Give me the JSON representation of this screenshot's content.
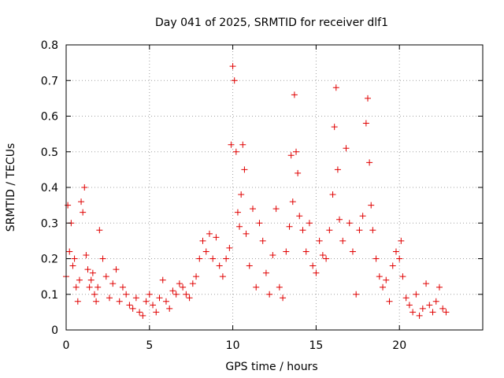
{
  "chart_data": {
    "type": "scatter",
    "title": "Day 041 of 2025, SRMTID for receiver dlf1",
    "xlabel": "GPS time / hours",
    "ylabel": "SRMTID / TECUs",
    "xlim": [
      0,
      25
    ],
    "ylim": [
      0,
      0.8
    ],
    "xticks": [
      "0",
      "5",
      "10",
      "15",
      "20"
    ],
    "yticks": [
      "0",
      "0.1",
      "0.2",
      "0.3",
      "0.4",
      "0.5",
      "0.6",
      "0.7",
      "0.8"
    ],
    "xtick_values": [
      0,
      5,
      10,
      15,
      20
    ],
    "ytick_values": [
      0,
      0.1,
      0.2,
      0.3,
      0.4,
      0.5,
      0.6,
      0.7,
      0.8
    ],
    "grid": true,
    "marker": "+",
    "color": "#e00000",
    "series": [
      {
        "name": "SRMTID dlf1",
        "x": [
          0.0,
          0.1,
          0.2,
          0.3,
          0.4,
          0.5,
          0.6,
          0.7,
          0.8,
          0.9,
          1.0,
          1.1,
          1.2,
          1.3,
          1.4,
          1.5,
          1.6,
          1.7,
          1.8,
          1.9,
          2.0,
          2.2,
          2.4,
          2.6,
          2.8,
          3.0,
          3.2,
          3.4,
          3.6,
          3.8,
          4.0,
          4.2,
          4.4,
          4.6,
          4.8,
          5.0,
          5.2,
          5.4,
          5.6,
          5.8,
          6.0,
          6.2,
          6.4,
          6.6,
          6.8,
          7.0,
          7.2,
          7.4,
          7.6,
          7.8,
          8.0,
          8.2,
          8.4,
          8.6,
          8.8,
          9.0,
          9.2,
          9.4,
          9.6,
          9.8,
          9.9,
          10.0,
          10.1,
          10.2,
          10.3,
          10.4,
          10.5,
          10.6,
          10.7,
          10.8,
          11.0,
          11.2,
          11.4,
          11.6,
          11.8,
          12.0,
          12.2,
          12.4,
          12.6,
          12.8,
          13.0,
          13.2,
          13.4,
          13.5,
          13.6,
          13.7,
          13.8,
          13.9,
          14.0,
          14.2,
          14.4,
          14.6,
          14.8,
          15.0,
          15.2,
          15.4,
          15.6,
          15.8,
          16.0,
          16.1,
          16.2,
          16.3,
          16.4,
          16.6,
          16.8,
          17.0,
          17.2,
          17.4,
          17.6,
          17.8,
          18.0,
          18.1,
          18.2,
          18.3,
          18.4,
          18.6,
          18.8,
          19.0,
          19.2,
          19.4,
          19.6,
          19.8,
          20.0,
          20.1,
          20.2,
          20.4,
          20.6,
          20.8,
          21.0,
          21.2,
          21.4,
          21.6,
          21.8,
          22.0,
          22.2,
          22.4,
          22.6,
          22.8
        ],
        "y": [
          0.15,
          0.35,
          0.22,
          0.3,
          0.18,
          0.2,
          0.12,
          0.08,
          0.14,
          0.36,
          0.33,
          0.4,
          0.21,
          0.17,
          0.12,
          0.14,
          0.16,
          0.1,
          0.08,
          0.12,
          0.28,
          0.2,
          0.15,
          0.09,
          0.13,
          0.17,
          0.08,
          0.12,
          0.1,
          0.07,
          0.06,
          0.09,
          0.05,
          0.04,
          0.08,
          0.1,
          0.07,
          0.05,
          0.09,
          0.14,
          0.08,
          0.06,
          0.11,
          0.1,
          0.13,
          0.12,
          0.1,
          0.09,
          0.13,
          0.15,
          0.2,
          0.25,
          0.22,
          0.27,
          0.2,
          0.26,
          0.18,
          0.15,
          0.2,
          0.23,
          0.52,
          0.74,
          0.7,
          0.5,
          0.33,
          0.29,
          0.38,
          0.52,
          0.45,
          0.27,
          0.18,
          0.34,
          0.12,
          0.3,
          0.25,
          0.16,
          0.1,
          0.21,
          0.34,
          0.12,
          0.09,
          0.22,
          0.29,
          0.49,
          0.36,
          0.66,
          0.5,
          0.44,
          0.32,
          0.28,
          0.22,
          0.3,
          0.18,
          0.16,
          0.25,
          0.21,
          0.2,
          0.28,
          0.38,
          0.57,
          0.68,
          0.45,
          0.31,
          0.25,
          0.51,
          0.3,
          0.22,
          0.1,
          0.28,
          0.32,
          0.58,
          0.65,
          0.47,
          0.35,
          0.28,
          0.2,
          0.15,
          0.12,
          0.14,
          0.08,
          0.18,
          0.22,
          0.2,
          0.25,
          0.15,
          0.09,
          0.07,
          0.05,
          0.1,
          0.04,
          0.06,
          0.13,
          0.07,
          0.05,
          0.08,
          0.12,
          0.06,
          0.05
        ]
      }
    ]
  }
}
